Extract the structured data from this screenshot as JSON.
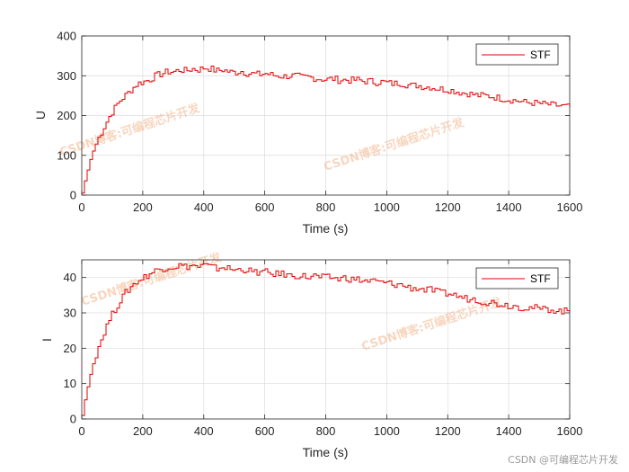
{
  "chart_data": [
    {
      "type": "line",
      "xlabel": "Time (s)",
      "ylabel": "U",
      "xlim": [
        0,
        1600
      ],
      "ylim": [
        0,
        400
      ],
      "xticks": [
        0,
        200,
        400,
        600,
        800,
        1000,
        1200,
        1400,
        1600
      ],
      "yticks": [
        0,
        100,
        200,
        300,
        400
      ],
      "grid": true,
      "legend_position": "top-right",
      "series": [
        {
          "name": "STF",
          "color": "#e00000",
          "x": [
            0,
            10,
            20,
            30,
            40,
            50,
            60,
            70,
            80,
            90,
            100,
            120,
            140,
            160,
            180,
            200,
            220,
            240,
            260,
            280,
            300,
            320,
            340,
            360,
            380,
            400,
            420,
            440,
            460,
            480,
            500,
            520,
            540,
            560,
            580,
            600,
            620,
            640,
            660,
            680,
            700,
            720,
            740,
            760,
            780,
            800,
            820,
            840,
            860,
            880,
            900,
            920,
            940,
            960,
            980,
            1000,
            1020,
            1040,
            1060,
            1080,
            1100,
            1120,
            1140,
            1160,
            1180,
            1200,
            1220,
            1240,
            1260,
            1280,
            1300,
            1320,
            1340,
            1360,
            1380,
            1400,
            1420,
            1440,
            1460,
            1480,
            1500,
            1520,
            1540,
            1560,
            1580,
            1600
          ],
          "values": [
            5,
            40,
            70,
            100,
            120,
            140,
            155,
            170,
            185,
            200,
            212,
            235,
            250,
            265,
            280,
            285,
            290,
            300,
            305,
            310,
            310,
            315,
            312,
            318,
            315,
            320,
            318,
            312,
            315,
            310,
            308,
            312,
            306,
            305,
            303,
            306,
            302,
            300,
            298,
            300,
            300,
            295,
            297,
            294,
            292,
            290,
            293,
            289,
            290,
            288,
            290,
            286,
            287,
            283,
            285,
            282,
            280,
            282,
            278,
            275,
            276,
            272,
            272,
            268,
            266,
            265,
            262,
            258,
            256,
            253,
            250,
            250,
            248,
            245,
            242,
            240,
            238,
            235,
            232,
            232,
            230,
            228,
            226,
            225,
            223,
            220
          ]
        }
      ]
    },
    {
      "type": "line",
      "xlabel": "Time (s)",
      "ylabel": "I",
      "xlim": [
        0,
        1600
      ],
      "ylim": [
        0,
        45
      ],
      "xticks": [
        0,
        200,
        400,
        600,
        800,
        1000,
        1200,
        1400,
        1600
      ],
      "yticks": [
        0,
        10,
        20,
        30,
        40
      ],
      "grid": true,
      "legend_position": "top-right",
      "series": [
        {
          "name": "STF",
          "color": "#e00000",
          "x": [
            0,
            10,
            20,
            30,
            40,
            50,
            60,
            70,
            80,
            90,
            100,
            120,
            140,
            160,
            180,
            200,
            220,
            240,
            260,
            280,
            300,
            320,
            340,
            360,
            380,
            400,
            420,
            440,
            460,
            480,
            500,
            520,
            540,
            560,
            580,
            600,
            620,
            640,
            660,
            680,
            700,
            720,
            740,
            760,
            780,
            800,
            820,
            840,
            860,
            880,
            900,
            920,
            940,
            960,
            980,
            1000,
            1020,
            1040,
            1060,
            1080,
            1100,
            1120,
            1140,
            1160,
            1180,
            1200,
            1220,
            1240,
            1260,
            1280,
            1300,
            1320,
            1340,
            1360,
            1380,
            1400,
            1420,
            1440,
            1460,
            1480,
            1500,
            1520,
            1540,
            1560,
            1580,
            1600
          ],
          "values": [
            1,
            6,
            10,
            14,
            17,
            20,
            22,
            24.5,
            26.5,
            28.5,
            30,
            33,
            35.5,
            37.5,
            39,
            40,
            41,
            42,
            42.5,
            43,
            43,
            43.5,
            43,
            43.5,
            43,
            43.5,
            43,
            42.5,
            43,
            42.5,
            42,
            42.5,
            42,
            41.5,
            41.5,
            41.5,
            41,
            41,
            41,
            40.5,
            40.5,
            40.5,
            40,
            40.5,
            40,
            40,
            40,
            39.5,
            40,
            39.5,
            39.5,
            39,
            39,
            39,
            38.5,
            38.5,
            38,
            38,
            37.5,
            37,
            37,
            36.5,
            36.5,
            36,
            35.5,
            35.5,
            35,
            34.5,
            34,
            34,
            33.5,
            33,
            33,
            32.5,
            32.5,
            32,
            32,
            31.5,
            31.5,
            31.5,
            31,
            31,
            31,
            30.5,
            30.5,
            30.5
          ]
        }
      ]
    }
  ],
  "watermark": "CSDN博客:可编程芯片开发",
  "credit": "CSDN @可编程芯片开发"
}
